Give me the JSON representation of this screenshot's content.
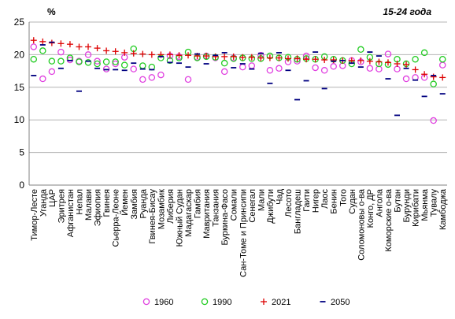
{
  "chart_data": {
    "type": "scatter",
    "title": "15-24 года",
    "ylabel": "%",
    "ylim": [
      0,
      25
    ],
    "yticks": [
      0,
      5,
      10,
      15,
      20,
      25
    ],
    "grid": true,
    "legend_placement": "bottom",
    "categories": [
      "Тимор-Лесте",
      "Уганда",
      "ЦАР",
      "Эритрея",
      "Афганистан",
      "Непал",
      "Малави",
      "Эфиопия",
      "Гвинея",
      "Сьерра-Леоне",
      "Йемен",
      "Замбия",
      "Руанда",
      "Гвинея-Бисау",
      "Мозамбик",
      "Либерия",
      "Южный Судан",
      "Мадагаскар",
      "Гамбия",
      "Мавритания",
      "Танзания",
      "Буркина-Фасо",
      "Сомали",
      "Сан-Томе и Принсипи",
      "Сенегал",
      "Мали",
      "Джибути",
      "Чад",
      "Лесото",
      "Бангладеш",
      "Гаити",
      "Нигер",
      "Лаос",
      "Бенин",
      "Того",
      "Судан",
      "Соломоновы о-ва",
      "Конго, ДР",
      "Ангола",
      "Коморские о-ва",
      "Бутан",
      "Бурунди",
      "Кирибати",
      "Мьянма",
      "Тувалу",
      "Камбоджа"
    ],
    "series": [
      {
        "name": "1960",
        "marker": "circle-open",
        "color": "#e040e0",
        "values": [
          21.2,
          16.3,
          17.4,
          20.4,
          19.2,
          19.0,
          20.0,
          19.0,
          17.8,
          18.6,
          19.6,
          17.8,
          16.2,
          16.5,
          16.9,
          19.8,
          19.7,
          16.2,
          19.6,
          19.8,
          19.5,
          17.4,
          19.5,
          18.1,
          18.3,
          19.9,
          17.6,
          17.9,
          18.9,
          19.0,
          19.8,
          18.0,
          17.6,
          18.2,
          18.3,
          19.1,
          18.9,
          17.9,
          17.8,
          20.1,
          17.8,
          16.3,
          16.5,
          16.5,
          9.9,
          18.4
        ]
      },
      {
        "name": "1990",
        "marker": "circle-open",
        "color": "#22cc22",
        "values": [
          19.3,
          20.6,
          19.0,
          19.0,
          19.5,
          18.9,
          18.8,
          18.6,
          18.9,
          18.9,
          18.4,
          20.9,
          18.3,
          18.1,
          19.5,
          19.1,
          19.5,
          20.4,
          19.5,
          19.7,
          19.6,
          18.7,
          19.4,
          19.5,
          19.4,
          19.4,
          19.8,
          19.5,
          19.6,
          19.3,
          19.4,
          19.3,
          19.7,
          19.3,
          19.1,
          18.6,
          20.8,
          19.6,
          18.6,
          18.5,
          19.3,
          18.6,
          19.3,
          20.3,
          15.5,
          19.3
        ]
      },
      {
        "name": "2021",
        "marker": "plus",
        "color": "#dd0000",
        "values": [
          22.2,
          22.0,
          21.8,
          21.7,
          21.6,
          21.2,
          21.2,
          21.0,
          20.6,
          20.5,
          20.3,
          20.2,
          20.1,
          20.0,
          20.0,
          20.0,
          19.9,
          19.9,
          19.8,
          19.8,
          19.7,
          19.7,
          19.7,
          19.6,
          19.6,
          19.5,
          19.5,
          19.5,
          19.4,
          19.4,
          19.3,
          19.3,
          19.2,
          19.2,
          19.1,
          19.1,
          19.1,
          19.0,
          18.9,
          18.8,
          18.6,
          18.5,
          17.7,
          17.0,
          16.6,
          16.5
        ]
      },
      {
        "name": "2050",
        "marker": "dash",
        "color": "#000080",
        "values": [
          16.8,
          21.5,
          21.9,
          17.9,
          19.1,
          14.4,
          19.0,
          17.9,
          17.7,
          17.7,
          17.6,
          18.7,
          17.8,
          17.7,
          19.7,
          18.8,
          18.7,
          18.1,
          20.1,
          18.6,
          19.9,
          20.3,
          18.0,
          18.6,
          17.8,
          20.2,
          15.6,
          20.3,
          17.6,
          13.1,
          16.0,
          20.4,
          14.8,
          19.0,
          19.1,
          18.7,
          18.1,
          20.4,
          19.8,
          16.3,
          10.7,
          17.9,
          16.1,
          13.6,
          16.8,
          14.0
        ]
      }
    ]
  }
}
